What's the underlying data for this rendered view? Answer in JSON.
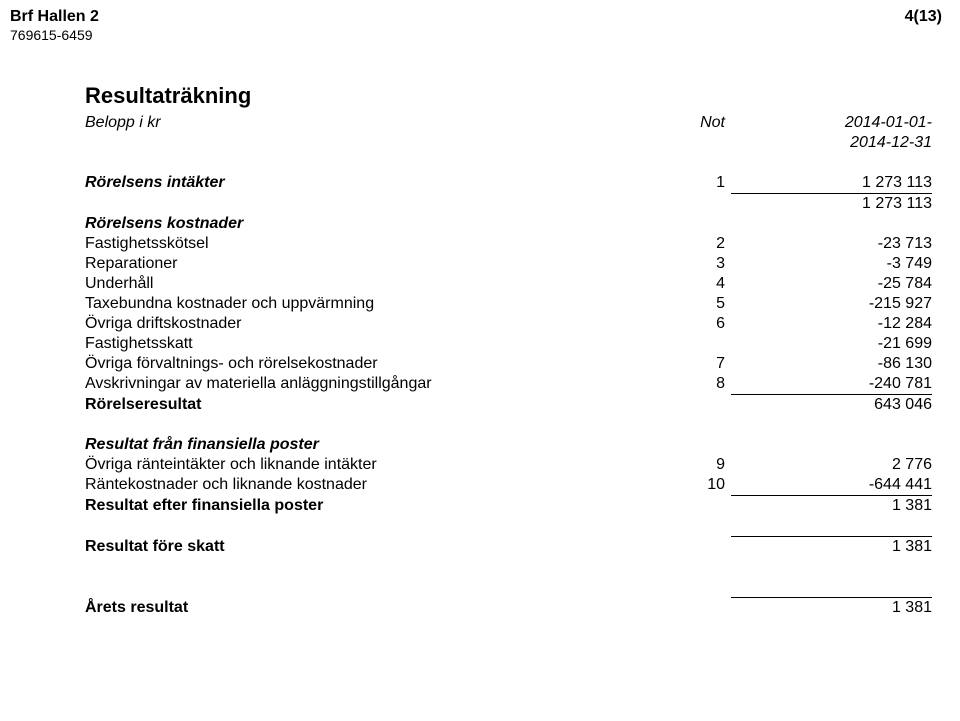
{
  "header": {
    "org_name": "Brf Hallen 2",
    "org_id": "769615-6459",
    "page_num": "4(13)"
  },
  "title": "Resultaträkning",
  "columns": {
    "label": "Belopp i kr",
    "not": "Not",
    "period": "2014-01-01-",
    "period2": "2014-12-31"
  },
  "s1": {
    "heading": "Rörelsens intäkter",
    "not": "1",
    "val": "1 273 113",
    "sum": "1 273 113"
  },
  "s2": {
    "heading": "Rörelsens kostnader",
    "r1": {
      "label": "Fastighetsskötsel",
      "not": "2",
      "val": "-23 713"
    },
    "r2": {
      "label": "Reparationer",
      "not": "3",
      "val": "-3 749"
    },
    "r3": {
      "label": "Underhåll",
      "not": "4",
      "val": "-25 784"
    },
    "r4": {
      "label": "Taxebundna kostnader och uppvärmning",
      "not": "5",
      "val": "-215 927"
    },
    "r5": {
      "label": "Övriga driftskostnader",
      "not": "6",
      "val": "-12 284"
    },
    "r6": {
      "label": "Fastighetsskatt",
      "not": "",
      "val": "-21 699"
    },
    "r7": {
      "label": "Övriga förvaltnings- och rörelsekostnader",
      "not": "7",
      "val": "-86 130"
    },
    "r8": {
      "label": "Avskrivningar av materiella anläggningstillgångar",
      "not": "8",
      "val": "-240 781"
    },
    "result_label": "Rörelseresultat",
    "result_val": "643 046"
  },
  "s3": {
    "heading": "Resultat från finansiella poster",
    "r1": {
      "label": "Övriga ränteintäkter och liknande intäkter",
      "not": "9",
      "val": "2 776"
    },
    "r2": {
      "label": "Räntekostnader och liknande kostnader",
      "not": "10",
      "val": "-644 441"
    },
    "result_label": "Resultat efter finansiella poster",
    "result_val": "1 381"
  },
  "s4": {
    "label": "Resultat före skatt",
    "val": "1 381"
  },
  "s5": {
    "label": "Årets resultat",
    "val": "1 381"
  }
}
